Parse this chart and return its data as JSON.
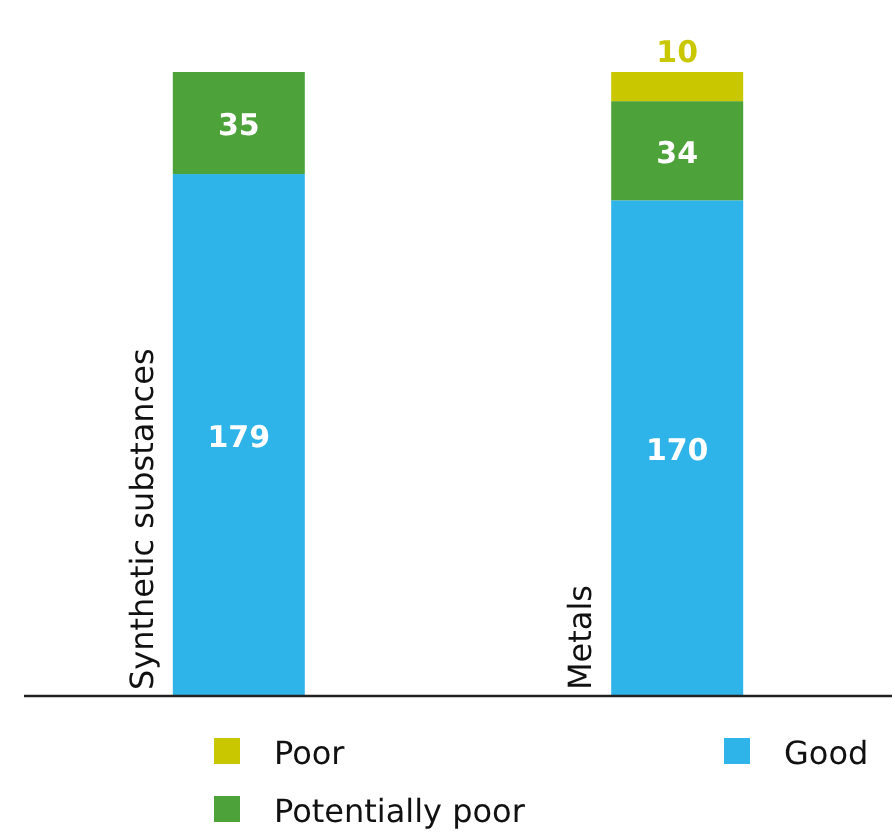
{
  "chart_data": {
    "type": "bar",
    "stacked": true,
    "categories": [
      "Synthetic substances",
      "Metals"
    ],
    "series": [
      {
        "name": "Good",
        "color": "#2fb4e9",
        "values": [
          179,
          170
        ]
      },
      {
        "name": "Potentially poor",
        "color": "#4da23a",
        "values": [
          35,
          34
        ]
      },
      {
        "name": "Poor",
        "color": "#c9c800",
        "values": [
          null,
          10
        ]
      }
    ],
    "data_labels": true,
    "legend": "bottom"
  }
}
